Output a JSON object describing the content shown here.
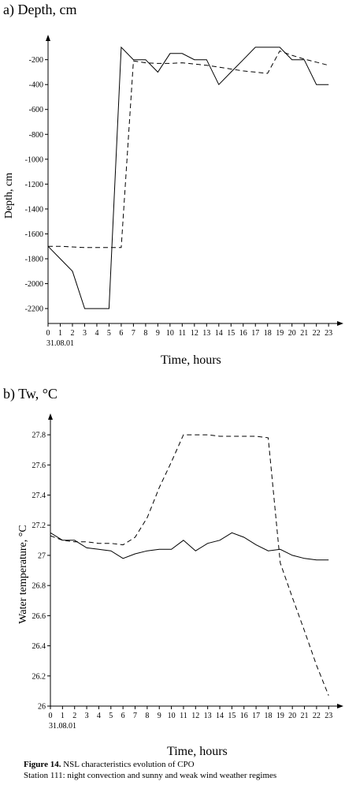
{
  "figure": {
    "caption_label": "Figure 14.",
    "caption_title": " NSL characteristics evolution of CPO",
    "caption_line2": "Station 111: night convection and sunny and weak wind weather regimes"
  },
  "chart_data": [
    {
      "type": "line",
      "panel_label": "a) Depth, cm",
      "xlabel": "Time, hours",
      "ylabel": "Depth, cm",
      "date_label": "31.08.01",
      "x": [
        0,
        1,
        2,
        3,
        4,
        5,
        6,
        7,
        8,
        9,
        10,
        11,
        12,
        13,
        14,
        15,
        16,
        17,
        18,
        19,
        20,
        21,
        22,
        23
      ],
      "xlim": [
        0,
        23.7
      ],
      "ylim": [
        -2320,
        -50
      ],
      "yticks": [
        -200,
        -400,
        -600,
        -800,
        -1000,
        -1200,
        -1400,
        -1600,
        -1800,
        -2000,
        -2200
      ],
      "series": [
        {
          "style": "solid",
          "values": [
            -1700,
            -1800,
            -1900,
            -2200,
            -2200,
            -2200,
            -100,
            -200,
            -200,
            -300,
            -150,
            -150,
            -200,
            -200,
            -400,
            -300,
            -200,
            -100,
            -100,
            -100,
            -200,
            -200,
            -400,
            -400
          ]
        },
        {
          "style": "dashed",
          "values": [
            -1700,
            -1700,
            -1705,
            -1710,
            -1710,
            -1710,
            -1710,
            -210,
            -225,
            -230,
            -230,
            -225,
            -235,
            -245,
            -260,
            -275,
            -290,
            -300,
            -310,
            -130,
            -165,
            -195,
            -220,
            -245
          ]
        }
      ]
    },
    {
      "type": "line",
      "panel_label": "b) Tw, °C",
      "xlabel": "Time, hours",
      "ylabel": "Water temperature, °C",
      "date_label": "31.08.01",
      "x": [
        0,
        1,
        2,
        3,
        4,
        5,
        6,
        7,
        8,
        9,
        10,
        11,
        12,
        13,
        14,
        15,
        16,
        17,
        18,
        19,
        20,
        21,
        22,
        23
      ],
      "xlim": [
        0,
        23.7
      ],
      "ylim": [
        26,
        27.9
      ],
      "yticks": [
        26,
        26.2,
        26.4,
        26.6,
        26.8,
        27,
        27.2,
        27.4,
        27.6,
        27.8
      ],
      "series": [
        {
          "style": "solid",
          "values": [
            27.15,
            27.1,
            27.1,
            27.05,
            27.04,
            27.03,
            26.98,
            27.01,
            27.03,
            27.04,
            27.04,
            27.1,
            27.03,
            27.08,
            27.1,
            27.15,
            27.12,
            27.07,
            27.03,
            27.04,
            27.0,
            26.98,
            26.97,
            26.97
          ]
        },
        {
          "style": "dashed",
          "values": [
            27.13,
            27.1,
            27.09,
            27.09,
            27.08,
            27.08,
            27.07,
            27.12,
            27.25,
            27.45,
            27.62,
            27.8,
            27.8,
            27.8,
            27.79,
            27.79,
            27.79,
            27.79,
            27.78,
            26.95,
            26.72,
            26.5,
            26.27,
            26.07
          ]
        }
      ]
    }
  ]
}
